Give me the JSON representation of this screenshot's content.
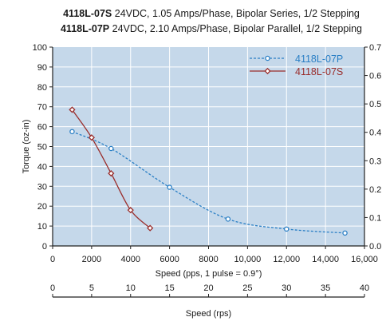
{
  "title": {
    "line1_model": "4118L-07S",
    "line1_spec": " 24VDC, 1.05 Amps/Phase, Bipolar Series, 1/2 Stepping",
    "line2_model": "4118L-07P",
    "line2_spec": " 24VDC, 2.10 Amps/Phase, Bipolar Parallel, 1/2 Stepping"
  },
  "colors": {
    "plot_bg": "#c5d8ea",
    "grid": "#ffffff",
    "series_p": "#2a7fc5",
    "series_s": "#9a2d2b",
    "outer_bg": "#ffffff"
  },
  "chart_data": {
    "type": "line",
    "xlabel": "Speed (pps, 1 pulse = 0.9°)",
    "ylabel": "Torque (oz-in)",
    "x2label": "Speed (rps)",
    "xlim": [
      0,
      16000
    ],
    "ylim": [
      0,
      100
    ],
    "x2lim": [
      0,
      40
    ],
    "y2lim": [
      0,
      0.7
    ],
    "x_ticks": [
      "0",
      "2000",
      "4000",
      "6000",
      "8000",
      "10,000",
      "12,000",
      "14,000",
      "16,000"
    ],
    "x_tick_values": [
      0,
      2000,
      4000,
      6000,
      8000,
      10000,
      12000,
      14000,
      16000
    ],
    "y_ticks": [
      "0",
      "10",
      "20",
      "30",
      "40",
      "50",
      "60",
      "70",
      "80",
      "90",
      "100"
    ],
    "y_tick_values": [
      0,
      10,
      20,
      30,
      40,
      50,
      60,
      70,
      80,
      90,
      100
    ],
    "y2_ticks": [
      "0.0",
      "0.1",
      "0.2",
      "0.3",
      "0.4",
      "0.5",
      "0.6",
      "0.7"
    ],
    "y2_tick_values": [
      0,
      0.1,
      0.2,
      0.3,
      0.4,
      0.5,
      0.6,
      0.7
    ],
    "x2_ticks": [
      "0",
      "5",
      "10",
      "15",
      "20",
      "25",
      "30",
      "35",
      "40"
    ],
    "x2_tick_values": [
      0,
      5,
      10,
      15,
      20,
      25,
      30,
      35,
      40
    ],
    "grid": true,
    "legend_position": "top-right",
    "series": [
      {
        "name": "4118L-07P",
        "style": "dashed",
        "color": "#2a7fc5",
        "marker": "circle",
        "points": [
          [
            1000,
            57.5
          ],
          [
            3000,
            49
          ],
          [
            6000,
            29.5
          ],
          [
            9000,
            13.5
          ],
          [
            12000,
            8.5
          ],
          [
            15000,
            6.5
          ]
        ]
      },
      {
        "name": "4118L-07S",
        "style": "solid",
        "color": "#9a2d2b",
        "marker": "diamond",
        "points": [
          [
            1000,
            68.5
          ],
          [
            2000,
            54.5
          ],
          [
            3000,
            36.5
          ],
          [
            4000,
            18
          ],
          [
            5000,
            9
          ]
        ]
      }
    ]
  }
}
